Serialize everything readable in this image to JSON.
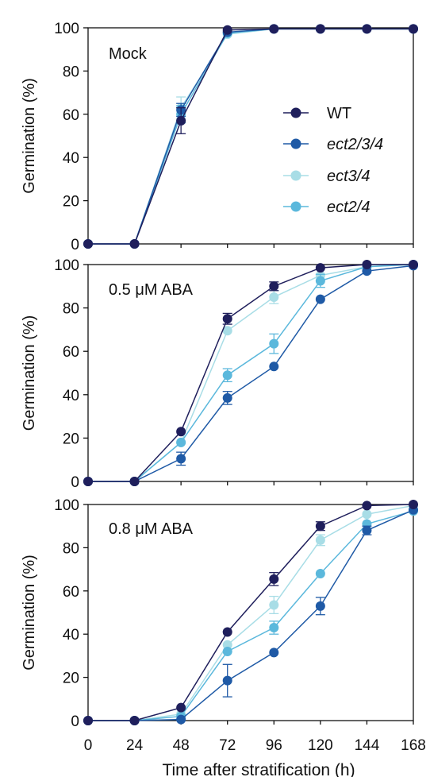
{
  "chart_data": [
    {
      "type": "line",
      "condition_label": "Mock",
      "ylabel": "Germination (%)",
      "xlabel": "",
      "x": [
        0,
        24,
        48,
        72,
        96,
        120,
        144,
        168
      ],
      "xlim": [
        0,
        168
      ],
      "ylim": [
        0,
        100
      ],
      "yticks": [
        0,
        20,
        40,
        60,
        80,
        100
      ],
      "legend": {
        "position": "center-right",
        "entries": [
          "WT",
          "ect2/3/4",
          "ect3/4",
          "ect2/4"
        ]
      },
      "series": [
        {
          "name": "WT",
          "color": "#1f1f5c",
          "values": [
            0,
            0,
            57,
            99,
            99.5,
            99.5,
            99.5,
            99.5
          ],
          "err": [
            0,
            0,
            6,
            0,
            0,
            0,
            0,
            0
          ]
        },
        {
          "name": "ect2/3/4",
          "color": "#1f5aa6",
          "values": [
            0,
            0,
            62,
            98,
            99.5,
            99.5,
            99.5,
            99.5
          ],
          "err": [
            0,
            0,
            3,
            0,
            0,
            0,
            0,
            0
          ]
        },
        {
          "name": "ect3/4",
          "color": "#a8dde6",
          "values": [
            0,
            0,
            63,
            97,
            99.5,
            99.5,
            99.5,
            99.5
          ],
          "err": [
            0,
            0,
            5,
            0,
            0,
            0,
            0,
            0
          ]
        },
        {
          "name": "ect2/4",
          "color": "#5bb8dc",
          "values": [
            0,
            0,
            60,
            97.5,
            99.5,
            99.5,
            99.5,
            99.5
          ],
          "err": [
            0,
            0,
            4,
            0,
            0,
            0,
            0,
            0
          ]
        }
      ]
    },
    {
      "type": "line",
      "condition_label": "0.5 μM ABA",
      "ylabel": "Germination (%)",
      "xlabel": "",
      "x": [
        0,
        24,
        48,
        72,
        96,
        120,
        144,
        168
      ],
      "xlim": [
        0,
        168
      ],
      "ylim": [
        0,
        100
      ],
      "yticks": [
        0,
        20,
        40,
        60,
        80,
        100
      ],
      "series": [
        {
          "name": "WT",
          "color": "#1f1f5c",
          "values": [
            0,
            0,
            23,
            75,
            90,
            98.5,
            100,
            100
          ],
          "err": [
            0,
            0,
            0,
            2.5,
            2,
            0,
            0,
            0
          ]
        },
        {
          "name": "ect2/3/4",
          "color": "#1f5aa6",
          "values": [
            0,
            0,
            10.5,
            38.5,
            53,
            84,
            97,
            99.5
          ],
          "err": [
            0,
            0,
            3,
            3,
            0,
            0,
            0,
            0
          ]
        },
        {
          "name": "ect3/4",
          "color": "#a8dde6",
          "values": [
            0,
            0,
            18,
            69.5,
            85,
            95,
            99,
            100
          ],
          "err": [
            0,
            0,
            0,
            0,
            3,
            0,
            0,
            0
          ]
        },
        {
          "name": "ect2/4",
          "color": "#5bb8dc",
          "values": [
            0,
            0,
            18,
            49,
            63.5,
            92.5,
            99,
            100
          ],
          "err": [
            0,
            0,
            0,
            3,
            4.5,
            3,
            0,
            0
          ]
        }
      ]
    },
    {
      "type": "line",
      "condition_label": "0.8 μM ABA",
      "ylabel": "Germination (%)",
      "xlabel": "Time after stratification (h)",
      "x": [
        0,
        24,
        48,
        72,
        96,
        120,
        144,
        168
      ],
      "xlim": [
        0,
        168
      ],
      "ylim": [
        0,
        100
      ],
      "xticks": [
        0,
        24,
        48,
        72,
        96,
        120,
        144,
        168
      ],
      "yticks": [
        0,
        20,
        40,
        60,
        80,
        100
      ],
      "series": [
        {
          "name": "WT",
          "color": "#1f1f5c",
          "values": [
            0,
            0,
            6,
            41,
            65.5,
            90,
            99.5,
            100
          ],
          "err": [
            0,
            0,
            0,
            0,
            3,
            2,
            0,
            0
          ]
        },
        {
          "name": "ect2/3/4",
          "color": "#1f5aa6",
          "values": [
            0,
            0,
            0.5,
            18.5,
            31.5,
            53,
            88,
            97.5
          ],
          "err": [
            0,
            0,
            0,
            7.5,
            0,
            4,
            2,
            0
          ]
        },
        {
          "name": "ect3/4",
          "color": "#a8dde6",
          "values": [
            0,
            0,
            3,
            35,
            53.5,
            83.5,
            95.5,
            99.5
          ],
          "err": [
            0,
            0,
            0,
            0,
            4,
            2.5,
            0,
            0
          ]
        },
        {
          "name": "ect2/4",
          "color": "#5bb8dc",
          "values": [
            0,
            0,
            2,
            32,
            43,
            68,
            91,
            97
          ],
          "err": [
            0,
            0,
            0,
            0,
            3,
            0,
            0,
            0
          ]
        }
      ]
    }
  ]
}
